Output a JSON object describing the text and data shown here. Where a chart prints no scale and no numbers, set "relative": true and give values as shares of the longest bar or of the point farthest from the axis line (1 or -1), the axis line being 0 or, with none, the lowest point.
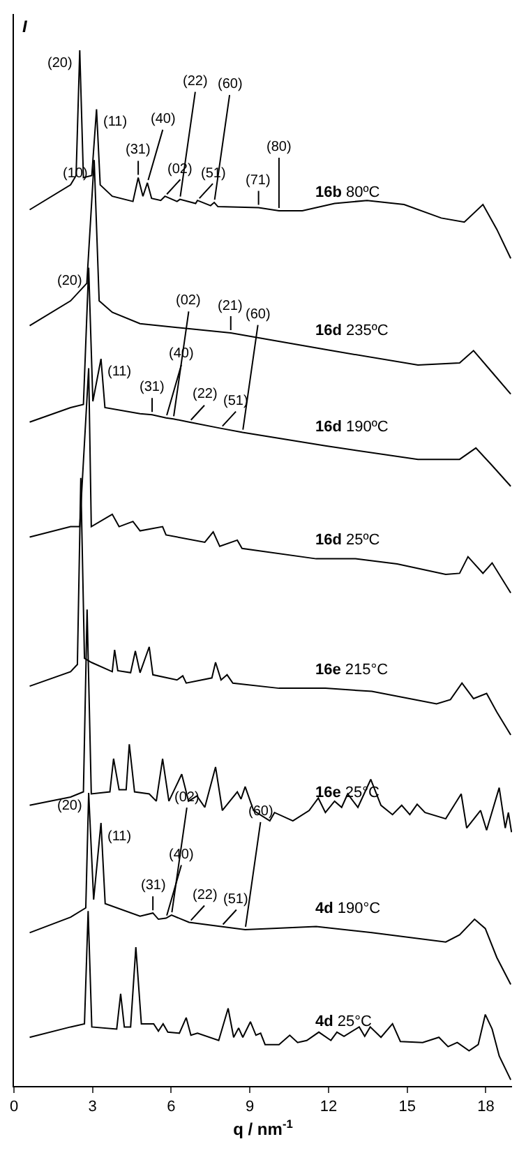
{
  "chart_data": {
    "type": "line",
    "relative": true,
    "xlabel": "q / nm$^{-1}$",
    "ylabel": "I",
    "xlim": [
      0,
      19
    ],
    "xticks": [
      0,
      3,
      6,
      9,
      12,
      15,
      18
    ],
    "legend": false,
    "grid": false,
    "marker": "none",
    "line_style": "solid",
    "series": [
      {
        "name": "16b 80ºC",
        "color": "#000000",
        "x": [
          0.6,
          2.16,
          2.37,
          2.51,
          2.65,
          2.97,
          3.15,
          3.29,
          3.75,
          4.54,
          4.74,
          4.92,
          5.09,
          5.25,
          5.6,
          5.76,
          6.22,
          6.33,
          6.93,
          7.0,
          7.5,
          7.64,
          7.78,
          9.33,
          10.11,
          11.0,
          12.23,
          13.47,
          14.88,
          16.3,
          17.18,
          17.89,
          18.42,
          18.95
        ],
        "values": [
          0.846,
          0.87,
          0.879,
          1.0,
          0.877,
          0.879,
          0.943,
          0.87,
          0.859,
          0.854,
          0.877,
          0.859,
          0.872,
          0.857,
          0.855,
          0.859,
          0.854,
          0.856,
          0.852,
          0.855,
          0.85,
          0.853,
          0.849,
          0.848,
          0.845,
          0.845,
          0.852,
          0.855,
          0.851,
          0.838,
          0.834,
          0.851,
          0.827,
          0.799
        ]
      },
      {
        "name": "16d 235ºC",
        "color": "#000000",
        "x": [
          0.6,
          2.16,
          2.78,
          3.06,
          3.25,
          3.75,
          4.81,
          8.27,
          11.88,
          15.41,
          17.0,
          17.53,
          18.24,
          18.95
        ],
        "values": [
          0.734,
          0.758,
          0.775,
          0.894,
          0.758,
          0.747,
          0.736,
          0.727,
          0.711,
          0.696,
          0.698,
          0.71,
          0.689,
          0.668
        ]
      },
      {
        "name": "16d 190ºC",
        "color": "#000000",
        "x": [
          0.6,
          2.16,
          2.65,
          2.85,
          3.01,
          3.32,
          3.47,
          4.81,
          5.27,
          5.8,
          6.08,
          6.68,
          7.88,
          8.72,
          11.88,
          15.41,
          17.0,
          17.62,
          18.24,
          18.95
        ],
        "values": [
          0.641,
          0.655,
          0.658,
          0.79,
          0.661,
          0.702,
          0.655,
          0.649,
          0.648,
          0.645,
          0.644,
          0.641,
          0.635,
          0.631,
          0.618,
          0.605,
          0.605,
          0.616,
          0.599,
          0.579
        ]
      },
      {
        "name": "16d 25ºC",
        "color": "#000000",
        "x": [
          0.6,
          2.16,
          2.51,
          2.85,
          2.95,
          3.75,
          4.01,
          4.54,
          4.81,
          5.67,
          5.8,
          7.28,
          7.6,
          7.85,
          8.52,
          8.7,
          11.53,
          13.03,
          14.62,
          16.47,
          17.0,
          17.32,
          17.89,
          18.24,
          18.95
        ],
        "values": [
          0.53,
          0.54,
          0.54,
          0.693,
          0.54,
          0.552,
          0.54,
          0.545,
          0.536,
          0.54,
          0.532,
          0.525,
          0.535,
          0.521,
          0.527,
          0.519,
          0.509,
          0.509,
          0.504,
          0.494,
          0.495,
          0.511,
          0.495,
          0.505,
          0.476
        ]
      },
      {
        "name": "16e 215°C",
        "color": "#000000",
        "x": [
          0.6,
          2.16,
          2.42,
          2.55,
          2.69,
          2.95,
          3.75,
          3.84,
          3.96,
          4.45,
          4.63,
          4.81,
          5.16,
          5.3,
          6.22,
          6.44,
          6.57,
          7.55,
          7.69,
          7.9,
          8.13,
          8.35,
          10.11,
          11.88,
          13.65,
          16.12,
          16.65,
          17.09,
          17.53,
          18.03,
          18.42,
          18.95
        ],
        "values": [
          0.386,
          0.4,
          0.407,
          0.587,
          0.413,
          0.409,
          0.4,
          0.421,
          0.401,
          0.399,
          0.42,
          0.399,
          0.424,
          0.397,
          0.392,
          0.396,
          0.389,
          0.394,
          0.409,
          0.392,
          0.397,
          0.389,
          0.384,
          0.384,
          0.381,
          0.369,
          0.373,
          0.389,
          0.374,
          0.379,
          0.361,
          0.339
        ]
      },
      {
        "name": "16e 25°C",
        "color": "#000000",
        "x": [
          0.6,
          2.16,
          2.65,
          2.79,
          2.95,
          3.66,
          3.8,
          4.01,
          4.28,
          4.4,
          4.6,
          5.16,
          5.43,
          5.67,
          5.91,
          6.4,
          6.66,
          6.98,
          7.28,
          7.69,
          7.95,
          8.52,
          8.66,
          8.82,
          9.14,
          9.76,
          9.94,
          10.64,
          11.26,
          11.61,
          11.88,
          12.23,
          12.5,
          12.73,
          13.12,
          13.61,
          14.0,
          14.44,
          14.79,
          15.1,
          15.38,
          15.68,
          16.47,
          16.79,
          17.06,
          17.27,
          17.8,
          18.03,
          18.51,
          18.74,
          18.86,
          18.98
        ],
        "values": [
          0.271,
          0.279,
          0.284,
          0.46,
          0.282,
          0.284,
          0.316,
          0.286,
          0.286,
          0.33,
          0.284,
          0.282,
          0.275,
          0.316,
          0.275,
          0.301,
          0.275,
          0.28,
          0.269,
          0.308,
          0.266,
          0.284,
          0.277,
          0.289,
          0.266,
          0.256,
          0.264,
          0.256,
          0.266,
          0.278,
          0.264,
          0.275,
          0.269,
          0.282,
          0.269,
          0.296,
          0.271,
          0.262,
          0.271,
          0.262,
          0.272,
          0.264,
          0.258,
          0.271,
          0.282,
          0.249,
          0.266,
          0.247,
          0.288,
          0.249,
          0.264,
          0.245
        ]
      },
      {
        "name": "4d 190°C",
        "color": "#000000",
        "x": [
          0.6,
          2.16,
          2.74,
          2.85,
          3.04,
          3.32,
          3.48,
          4.81,
          5.3,
          5.51,
          5.8,
          6.01,
          6.68,
          7.9,
          8.82,
          11.53,
          13.65,
          16.47,
          17.0,
          17.57,
          17.98,
          18.42,
          18.95
        ],
        "values": [
          0.148,
          0.163,
          0.172,
          0.283,
          0.18,
          0.254,
          0.176,
          0.164,
          0.167,
          0.161,
          0.162,
          0.165,
          0.158,
          0.154,
          0.151,
          0.154,
          0.148,
          0.139,
          0.146,
          0.161,
          0.152,
          0.124,
          0.098
        ]
      },
      {
        "name": "4d 25°C",
        "color": "#000000",
        "x": [
          0.6,
          2.16,
          2.69,
          2.83,
          2.97,
          3.92,
          4.07,
          4.21,
          4.45,
          4.65,
          4.86,
          5.33,
          5.51,
          5.69,
          5.87,
          6.31,
          6.57,
          6.75,
          7.0,
          7.81,
          8.17,
          8.38,
          8.57,
          8.73,
          9.02,
          9.23,
          9.41,
          9.58,
          10.11,
          10.52,
          10.82,
          11.17,
          11.63,
          12.09,
          12.32,
          12.59,
          13.17,
          13.38,
          13.59,
          14.0,
          14.44,
          14.74,
          15.59,
          16.21,
          16.56,
          16.91,
          17.36,
          17.71,
          17.98,
          18.24,
          18.51,
          18.95
        ],
        "values": [
          0.047,
          0.057,
          0.06,
          0.169,
          0.057,
          0.055,
          0.089,
          0.057,
          0.057,
          0.134,
          0.06,
          0.06,
          0.053,
          0.06,
          0.052,
          0.051,
          0.066,
          0.049,
          0.051,
          0.044,
          0.075,
          0.047,
          0.056,
          0.047,
          0.062,
          0.049,
          0.051,
          0.04,
          0.04,
          0.049,
          0.042,
          0.044,
          0.052,
          0.044,
          0.052,
          0.048,
          0.057,
          0.048,
          0.057,
          0.047,
          0.06,
          0.043,
          0.042,
          0.047,
          0.038,
          0.042,
          0.034,
          0.04,
          0.069,
          0.055,
          0.029,
          0.006
        ]
      }
    ],
    "annotations": [
      {
        "text": "(20)",
        "x": 2.51,
        "y": 1.0
      },
      {
        "text": "(11)",
        "x": 3.15,
        "y": 0.943
      },
      {
        "text": "(31)",
        "x": 4.74,
        "y": 0.877
      },
      {
        "text": "(40)",
        "x": 5.09,
        "y": 0.872
      },
      {
        "text": "(02)",
        "x": 5.76,
        "y": 0.859
      },
      {
        "text": "(22)",
        "x": 6.33,
        "y": 0.856
      },
      {
        "text": "(51)",
        "x": 7.0,
        "y": 0.855
      },
      {
        "text": "(60)",
        "x": 7.64,
        "y": 0.853
      },
      {
        "text": "(71)",
        "x": 9.33,
        "y": 0.848
      },
      {
        "text": "(80)",
        "x": 10.11,
        "y": 0.845
      },
      {
        "text": "(10)",
        "x": 3.06,
        "y": 0.894
      },
      {
        "text": "(21)",
        "x": 8.27,
        "y": 0.727
      },
      {
        "text": "(20)",
        "x": 2.85,
        "y": 0.79
      },
      {
        "text": "(11)",
        "x": 3.32,
        "y": 0.702
      },
      {
        "text": "(31)",
        "x": 5.27,
        "y": 0.648
      },
      {
        "text": "(40)",
        "x": 5.8,
        "y": 0.645
      },
      {
        "text": "(02)",
        "x": 6.08,
        "y": 0.644
      },
      {
        "text": "(22)",
        "x": 6.68,
        "y": 0.641
      },
      {
        "text": "(51)",
        "x": 7.88,
        "y": 0.635
      },
      {
        "text": "(60)",
        "x": 8.72,
        "y": 0.631
      },
      {
        "text": "(20)",
        "x": 2.85,
        "y": 0.283
      },
      {
        "text": "(11)",
        "x": 3.32,
        "y": 0.254
      },
      {
        "text": "(31)",
        "x": 5.3,
        "y": 0.167
      },
      {
        "text": "(40)",
        "x": 5.8,
        "y": 0.162
      },
      {
        "text": "(02)",
        "x": 6.01,
        "y": 0.165
      },
      {
        "text": "(22)",
        "x": 6.68,
        "y": 0.158
      },
      {
        "text": "(51)",
        "x": 7.9,
        "y": 0.154
      },
      {
        "text": "(60)",
        "x": 8.82,
        "y": 0.151
      }
    ]
  }
}
